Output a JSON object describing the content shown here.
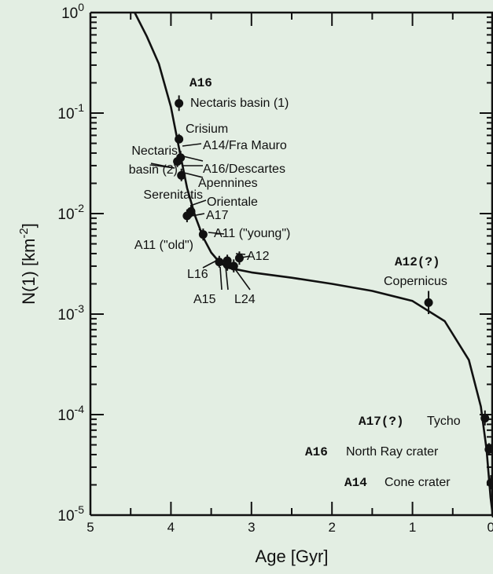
{
  "chart_data": {
    "type": "scatter",
    "xlabel": "Age [Gyr]",
    "ylabel_main": "N(1) [km",
    "ylabel_sup": "-2",
    "ylabel_close": "]",
    "xlim": [
      5,
      0
    ],
    "ylim": [
      1e-05,
      1
    ],
    "yscale": "log",
    "x_ticks": [
      {
        "value": 5,
        "label": "5"
      },
      {
        "value": 4,
        "label": "4"
      },
      {
        "value": 3,
        "label": "3"
      },
      {
        "value": 2,
        "label": "2"
      },
      {
        "value": 1,
        "label": "1"
      },
      {
        "value": 0,
        "label": "0"
      }
    ],
    "y_ticks": [
      {
        "value": 1,
        "base": "10",
        "exp": "0"
      },
      {
        "value": 0.1,
        "base": "10",
        "exp": "-1"
      },
      {
        "value": 0.01,
        "base": "10",
        "exp": "-2"
      },
      {
        "value": 0.001,
        "base": "10",
        "exp": "-3"
      },
      {
        "value": 0.0001,
        "base": "10",
        "exp": "-4"
      },
      {
        "value": 1e-05,
        "base": "10",
        "exp": "-5"
      }
    ],
    "curve": {
      "x": [
        4.45,
        4.3,
        4.15,
        4.0,
        3.9,
        3.8,
        3.7,
        3.6,
        3.5,
        3.4,
        3.3,
        3.2,
        3.0,
        2.5,
        2.0,
        1.5,
        1.0,
        0.6,
        0.3,
        0.15,
        0.08,
        0.03,
        0.0
      ],
      "y": [
        1.0,
        0.58,
        0.31,
        0.115,
        0.045,
        0.018,
        0.0095,
        0.0058,
        0.0041,
        0.0033,
        0.0029,
        0.0028,
        0.0026,
        0.0023,
        0.002,
        0.0017,
        0.00135,
        0.00085,
        0.00035,
        0.00012,
        4.5e-05,
        1.5e-05,
        9.5e-06
      ]
    },
    "points": [
      {
        "name": "A16 Nectaris basin (1)",
        "x": 3.9,
        "y": 0.125,
        "ylo": 0.105,
        "yhi": 0.15
      },
      {
        "name": "Crisium",
        "x": 3.9,
        "y": 0.055,
        "ylo": 0.05,
        "yhi": 0.062
      },
      {
        "name": "A14/Fra Mauro",
        "x": 3.88,
        "y": 0.036,
        "ylo": 0.031,
        "yhi": 0.042
      },
      {
        "name": "A16/Descartes",
        "x": 3.92,
        "y": 0.033,
        "ylo": 0.029,
        "yhi": 0.038
      },
      {
        "name": "Apennines",
        "x": 3.87,
        "y": 0.024,
        "ylo": 0.021,
        "yhi": 0.028
      },
      {
        "name": "Orientale",
        "x": 3.75,
        "y": 0.0105,
        "ylo": 0.0092,
        "yhi": 0.012
      },
      {
        "name": "A17",
        "x": 3.8,
        "y": 0.0095,
        "ylo": 0.0082,
        "yhi": 0.011
      },
      {
        "name": "A11 (\"old\")",
        "x": 3.6,
        "y": 0.0062,
        "ylo": 0.0054,
        "yhi": 0.0071
      },
      {
        "name": "A11 (\"young\")",
        "x": 3.15,
        "y": 0.0036,
        "ylo": 0.0031,
        "yhi": 0.0042
      },
      {
        "name": "A12",
        "x": 3.3,
        "y": 0.0034,
        "ylo": 0.003,
        "yhi": 0.0039
      },
      {
        "name": "L16",
        "x": 3.4,
        "y": 0.0033,
        "ylo": 0.0029,
        "yhi": 0.0038
      },
      {
        "name": "A15",
        "x": 3.3,
        "y": 0.0031,
        "ylo": 0.0027,
        "yhi": 0.0036
      },
      {
        "name": "L24",
        "x": 3.22,
        "y": 0.003,
        "ylo": 0.0026,
        "yhi": 0.0035
      },
      {
        "name": "A12 (?) Copernicus",
        "x": 0.8,
        "y": 0.0013,
        "ylo": 0.001,
        "yhi": 0.0017
      },
      {
        "name": "A17 (?) Tycho",
        "x": 0.1,
        "y": 9.2e-05,
        "ylo": 7.8e-05,
        "yhi": 0.00011
      },
      {
        "name": "A16 North Ray crater",
        "x": 0.05,
        "y": 4.5e-05,
        "ylo": 4e-05,
        "yhi": 5.2e-05
      },
      {
        "name": "A14 Cone crater",
        "x": 0.026,
        "y": 2.1e-05,
        "ylo": 1.8e-05,
        "yhi": 2.5e-05
      }
    ],
    "annotations": [
      {
        "id": "a16-bold",
        "text": "A16",
        "bold": true
      },
      {
        "id": "nectaris1",
        "text": "Nectaris basin (1)"
      },
      {
        "id": "crisium",
        "text": "Crisium"
      },
      {
        "id": "fra-mauro",
        "text": "A14/Fra Mauro"
      },
      {
        "id": "nectaris-a",
        "text": "Nectaris"
      },
      {
        "id": "nectaris-b",
        "text": "basin (2)"
      },
      {
        "id": "descartes",
        "text": "A16/Descartes"
      },
      {
        "id": "apennines",
        "text": "Apennines"
      },
      {
        "id": "serenitatis",
        "text": "Serenitatis"
      },
      {
        "id": "orientale",
        "text": "Orientale"
      },
      {
        "id": "a17",
        "text": "A17"
      },
      {
        "id": "a11-old",
        "text": "A11 (\"old\")"
      },
      {
        "id": "a11-young",
        "text": "A11 (\"young\")"
      },
      {
        "id": "a12",
        "text": "A12"
      },
      {
        "id": "l16",
        "text": "L16"
      },
      {
        "id": "a15",
        "text": "A15"
      },
      {
        "id": "l24",
        "text": "L24"
      },
      {
        "id": "a12q-bold",
        "text": "A12(?)",
        "bold": true
      },
      {
        "id": "copernicus",
        "text": "Copernicus"
      },
      {
        "id": "a17q-bold",
        "text": "A17(?)",
        "bold": true
      },
      {
        "id": "tycho",
        "text": "Tycho"
      },
      {
        "id": "a16-bold-2",
        "text": "A16",
        "bold": true
      },
      {
        "id": "north-ray",
        "text": "North Ray crater"
      },
      {
        "id": "a14-bold",
        "text": "A14",
        "bold": true
      },
      {
        "id": "cone",
        "text": "Cone crater"
      }
    ]
  }
}
